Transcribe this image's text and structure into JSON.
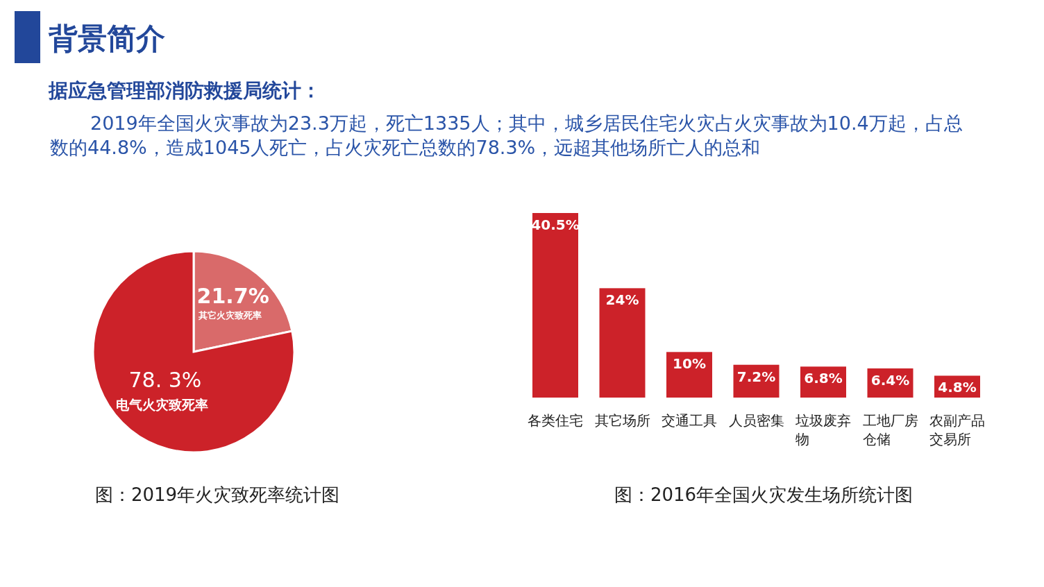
{
  "chart_data": [
    {
      "type": "other",
      "title": "背景简介",
      "subtitle": "据应急管理部消防救援局统计：",
      "annotations": [
        "2019年全国火灾事故为23.3万起，死亡1335人；其中，城乡居民住宅火灾占火灾事故为10.4万起，占总数的44.8%，造成1045人死亡，占火灾死亡总数的78.3%，远超其他场所亡人的总和"
      ]
    },
    {
      "type": "pie",
      "title": "图：2019年火灾致死率统计图",
      "categories": [
        "其它火灾致死率",
        "电气火灾致死率"
      ],
      "values": [
        21.7,
        78.3
      ],
      "value_labels": [
        "21.7%",
        "78. 3%"
      ],
      "colors": [
        "#d96a6a",
        "#cc2229"
      ],
      "legend": false
    },
    {
      "type": "bar",
      "title": "图：2016年全国火灾发生场所统计图",
      "categories": [
        "各类住宅",
        "其它场所",
        "交通工具",
        "人员密集",
        "垃圾废弃物",
        "工地厂房仓储",
        "农副产品交易所"
      ],
      "values": [
        40.5,
        24,
        10,
        7.2,
        6.8,
        6.4,
        4.8
      ],
      "value_labels": [
        "40.5%",
        "24%",
        "10%",
        "7.2%",
        "6.8%",
        "6.4%",
        "4.8%"
      ],
      "color": "#cc2229",
      "grid": false
    }
  ]
}
